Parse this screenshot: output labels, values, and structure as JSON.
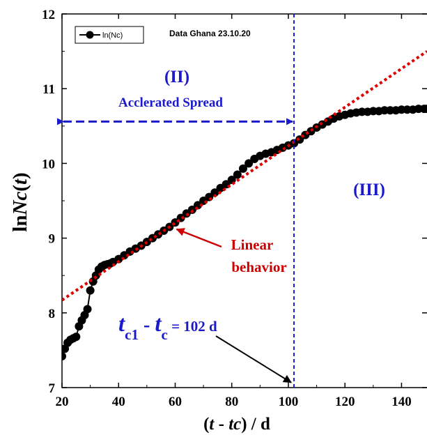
{
  "chart_data": {
    "type": "scatter",
    "header": "Data Ghana 23.10.20",
    "xlabel": {
      "open": "(",
      "var1": "t",
      "minus": " - ",
      "var2": "tc",
      "close": ") / d"
    },
    "ylabel": {
      "prefix": "ln",
      "var": "Nc",
      "open": "(",
      "arg": "t",
      "close": ")"
    },
    "xlim": [
      20,
      149
    ],
    "ylim": [
      7,
      12
    ],
    "xticks": [
      "20",
      "40",
      "60",
      "80",
      "100",
      "120",
      "140"
    ],
    "yticks": [
      "7",
      "8",
      "9",
      "10",
      "11",
      "12"
    ],
    "grid": false,
    "legend": {
      "position": "top-left",
      "entries": [
        {
          "label": "ln(Nc)"
        }
      ]
    },
    "series": [
      {
        "name": "ln(Nc)",
        "style": "line+markers",
        "color": "#000000",
        "points": [
          [
            20,
            7.42
          ],
          [
            21,
            7.52
          ],
          [
            22,
            7.6
          ],
          [
            23,
            7.64
          ],
          [
            24,
            7.66
          ],
          [
            25,
            7.68
          ],
          [
            26,
            7.82
          ],
          [
            27,
            7.9
          ],
          [
            28,
            7.97
          ],
          [
            29,
            8.05
          ],
          [
            30,
            8.3
          ],
          [
            31,
            8.42
          ],
          [
            32,
            8.5
          ],
          [
            33,
            8.58
          ],
          [
            34,
            8.62
          ],
          [
            35,
            8.64
          ],
          [
            36,
            8.65
          ],
          [
            37,
            8.66
          ],
          [
            38,
            8.68
          ],
          [
            40,
            8.72
          ],
          [
            42,
            8.77
          ],
          [
            44,
            8.82
          ],
          [
            46,
            8.86
          ],
          [
            48,
            8.9
          ],
          [
            50,
            8.95
          ],
          [
            52,
            9.0
          ],
          [
            54,
            9.05
          ],
          [
            56,
            9.1
          ],
          [
            58,
            9.15
          ],
          [
            60,
            9.21
          ],
          [
            62,
            9.27
          ],
          [
            64,
            9.33
          ],
          [
            66,
            9.38
          ],
          [
            68,
            9.44
          ],
          [
            70,
            9.5
          ],
          [
            72,
            9.55
          ],
          [
            74,
            9.61
          ],
          [
            76,
            9.67
          ],
          [
            78,
            9.72
          ],
          [
            80,
            9.78
          ],
          [
            82,
            9.85
          ],
          [
            84,
            9.93
          ],
          [
            86,
            10.0
          ],
          [
            88,
            10.06
          ],
          [
            90,
            10.1
          ],
          [
            92,
            10.13
          ],
          [
            94,
            10.15
          ],
          [
            96,
            10.18
          ],
          [
            98,
            10.21
          ],
          [
            100,
            10.24
          ],
          [
            102,
            10.27
          ],
          [
            104,
            10.32
          ],
          [
            106,
            10.38
          ],
          [
            108,
            10.43
          ],
          [
            110,
            10.48
          ],
          [
            112,
            10.52
          ],
          [
            114,
            10.56
          ],
          [
            116,
            10.6
          ],
          [
            118,
            10.63
          ],
          [
            120,
            10.65
          ],
          [
            122,
            10.67
          ],
          [
            124,
            10.68
          ],
          [
            126,
            10.69
          ],
          [
            128,
            10.69
          ],
          [
            130,
            10.7
          ],
          [
            132,
            10.7
          ],
          [
            134,
            10.71
          ],
          [
            136,
            10.71
          ],
          [
            138,
            10.71
          ],
          [
            140,
            10.72
          ],
          [
            142,
            10.72
          ],
          [
            144,
            10.72
          ],
          [
            146,
            10.73
          ],
          [
            148,
            10.73
          ],
          [
            149,
            10.73
          ]
        ]
      },
      {
        "name": "",
        "style": "dotted-line",
        "color": "#dd0000",
        "points": [
          [
            20,
            8.17
          ],
          [
            149,
            11.5
          ]
        ]
      }
    ],
    "annotations": {
      "region2_label": "(II)",
      "region2_text": "Acclerated Spread",
      "region3_label": "(III)",
      "linear_line1": "Linear",
      "linear_line2": "behavior",
      "tc": {
        "t1": "t",
        "sub1": "c1",
        "minus": " - ",
        "t2": "t",
        "sub2": "c",
        "value": " = 102 d"
      },
      "vertical_line_x": 102,
      "arrow_span": {
        "x_from": 20,
        "x_to": 102,
        "y": 10.56
      },
      "linear_arrow_target": {
        "x": 60,
        "y": 9.12
      },
      "tc_arrow_target": {
        "x": 102,
        "y": 7.03
      },
      "colors": {
        "blue": "#1a1acc",
        "red": "#cc0000",
        "fit": "#dd0000",
        "data": "#000000"
      }
    }
  }
}
